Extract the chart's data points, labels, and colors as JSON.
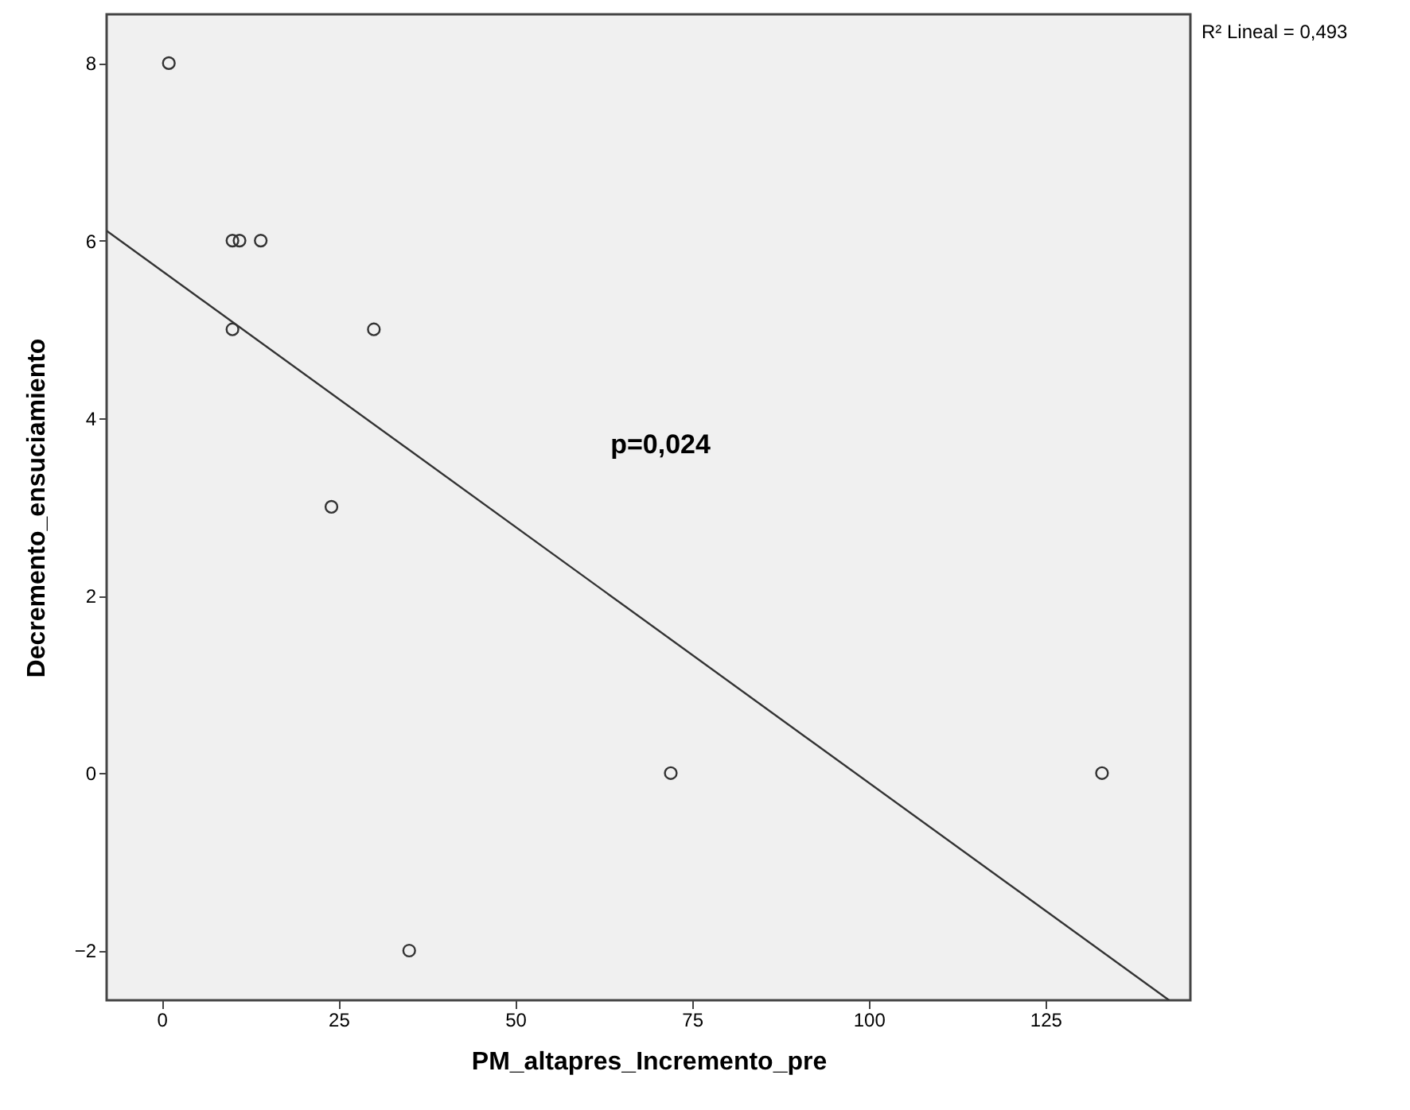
{
  "chart_data": {
    "type": "scatter",
    "xlabel": "PM_altapres_Incremento_pre",
    "ylabel": "Decremento_ensuciamiento",
    "x": [
      1,
      10,
      11,
      14,
      10,
      30,
      24,
      72,
      133,
      35
    ],
    "series": [
      {
        "color": "#333333",
        "values": [
          8,
          6,
          6,
          6,
          5,
          5,
          3,
          0,
          0,
          -2
        ]
      },
      {
        "type": "line",
        "color": "#333333",
        "marker": "none",
        "x": [
          -7.8,
          142.5
        ],
        "values": [
          6.11,
          -2.56
        ]
      }
    ],
    "marker": "circle",
    "xlim": [
      -7.8,
      145.5
    ],
    "xticks": [
      0,
      25,
      50,
      75,
      100,
      125
    ],
    "ylim": [
      -2.56,
      8.55
    ],
    "yticks": [
      -2,
      0,
      2,
      4,
      6,
      8
    ],
    "grid": false,
    "annotations": [
      "R² Lineal = 0,493",
      "p=0,024"
    ]
  }
}
